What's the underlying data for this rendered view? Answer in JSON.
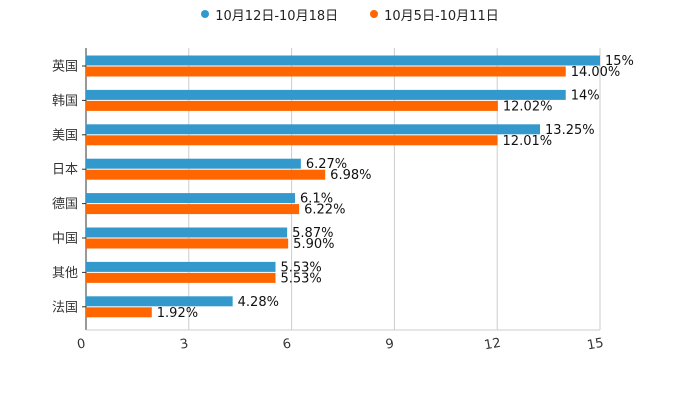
{
  "chart_data": {
    "type": "bar",
    "orientation": "horizontal",
    "categories": [
      "英国",
      "韩国",
      "美国",
      "日本",
      "德国",
      "中国",
      "其他",
      "法国"
    ],
    "series": [
      {
        "name": "10月12日-10月18日",
        "color": "#3399cc",
        "values": [
          15,
          14,
          13.25,
          6.27,
          6.1,
          5.87,
          5.53,
          4.28
        ],
        "labels": [
          "15%",
          "14%",
          "13.25%",
          "6.27%",
          "6.1%",
          "5.87%",
          "5.53%",
          "4.28%"
        ]
      },
      {
        "name": "10月5日-10月11日",
        "color": "#ff6600",
        "values": [
          14.0,
          12.02,
          12.01,
          6.98,
          6.22,
          5.9,
          5.53,
          1.92
        ],
        "labels": [
          "14.00%",
          "12.02%",
          "12.01%",
          "6.98%",
          "6.22%",
          "5.90%",
          "5.53%",
          "1.92%"
        ]
      }
    ],
    "xlim": [
      0,
      15
    ],
    "xticks": [
      0,
      3,
      6,
      9,
      12,
      15
    ],
    "xtick_labels": [
      "0",
      "3",
      "6",
      "9",
      "12",
      "15"
    ],
    "grid": true,
    "legend_position": "top-center",
    "title": "",
    "xlabel": "",
    "ylabel": ""
  }
}
